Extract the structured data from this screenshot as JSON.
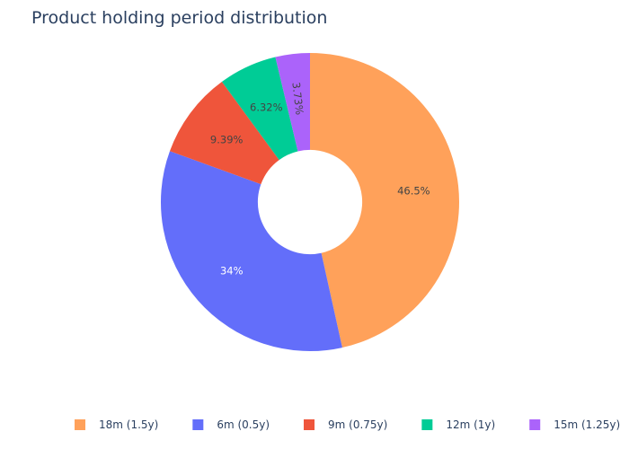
{
  "chart_data": {
    "type": "pie",
    "title": "Product holding period distribution",
    "hole": 0.35,
    "sort": "descending",
    "direction": "clockwise",
    "legend_position": "bottom",
    "slices": [
      {
        "label": "18m (1.5y)",
        "value": 46.5,
        "text": "46.5%",
        "color": "#FFA15A",
        "text_color": "#444444"
      },
      {
        "label": "6m (0.5y)",
        "value": 34,
        "text": "34%",
        "color": "#636EFA",
        "text_color": "#ffffff"
      },
      {
        "label": "9m (0.75y)",
        "value": 9.39,
        "text": "9.39%",
        "color": "#EF553B",
        "text_color": "#444444"
      },
      {
        "label": "12m (1y)",
        "value": 6.32,
        "text": "6.32%",
        "color": "#00CC96",
        "text_color": "#444444"
      },
      {
        "label": "15m (1.25y)",
        "value": 3.73,
        "text": "3.73%",
        "color": "#AB63FA",
        "text_color": "#444444"
      }
    ]
  }
}
